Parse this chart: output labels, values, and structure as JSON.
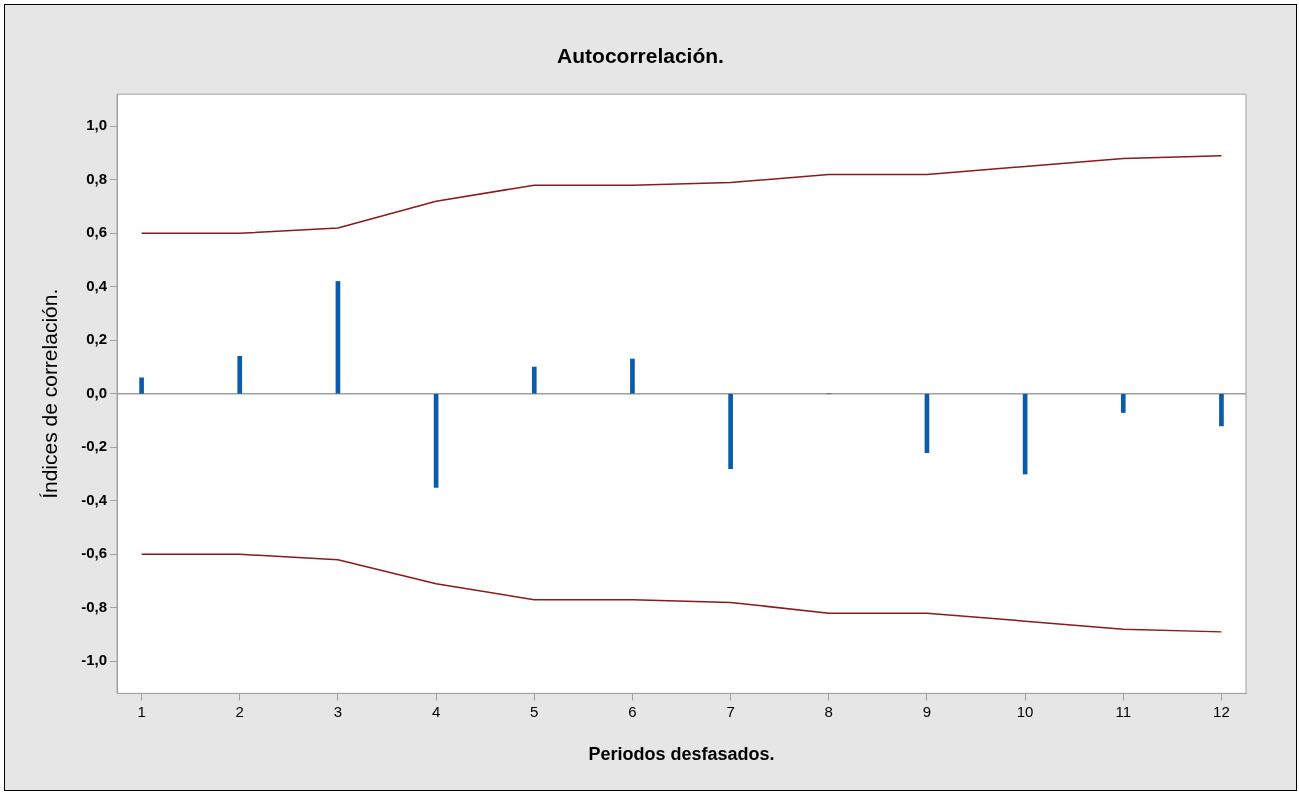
{
  "chart_data": {
    "type": "bar",
    "title": "Autocorrelación.",
    "xlabel": "Periodos desfasados.",
    "ylabel": "Índices de correlación.",
    "x": [
      1,
      2,
      3,
      4,
      5,
      6,
      7,
      8,
      9,
      10,
      11,
      12
    ],
    "series": [
      {
        "color": "#0b5bab",
        "values": [
          0.06,
          0.14,
          0.42,
          -0.35,
          0.1,
          0.13,
          -0.28,
          0.0,
          -0.22,
          -0.3,
          -0.07,
          -0.12
        ]
      },
      {
        "type": "line",
        "color": "#8b1a1a",
        "values": [
          0.6,
          0.6,
          0.62,
          0.72,
          0.78,
          0.78,
          0.79,
          0.82,
          0.82,
          0.85,
          0.88,
          0.89
        ]
      },
      {
        "type": "line",
        "color": "#8b1a1a",
        "values": [
          -0.6,
          -0.6,
          -0.62,
          -0.71,
          -0.77,
          -0.77,
          -0.78,
          -0.82,
          -0.82,
          -0.85,
          -0.88,
          -0.89
        ]
      }
    ],
    "xlim": [
      0.75,
      12.25
    ],
    "xticks": [
      1,
      2,
      3,
      4,
      5,
      6,
      7,
      8,
      9,
      10,
      11,
      12
    ],
    "ylim": [
      -1.12,
      1.12
    ],
    "yticks": [
      {
        "value": -1.0,
        "label": "-1,0"
      },
      {
        "value": -0.8,
        "label": "-0,8"
      },
      {
        "value": -0.6,
        "label": "-0,6"
      },
      {
        "value": -0.4,
        "label": "-0,4"
      },
      {
        "value": -0.2,
        "label": "-0,2"
      },
      {
        "value": 0.0,
        "label": "0,0"
      },
      {
        "value": 0.2,
        "label": "0,2"
      },
      {
        "value": 0.4,
        "label": "0,4"
      },
      {
        "value": 0.6,
        "label": "0,6"
      },
      {
        "value": 0.8,
        "label": "0,8"
      },
      {
        "value": 1.0,
        "label": "1,0"
      }
    ],
    "ref_lines": [
      {
        "axis": "y",
        "value": 0,
        "color": "#a0a0a0"
      }
    ],
    "grid": false,
    "legend": false,
    "marker": "none",
    "line_style": "solid"
  }
}
